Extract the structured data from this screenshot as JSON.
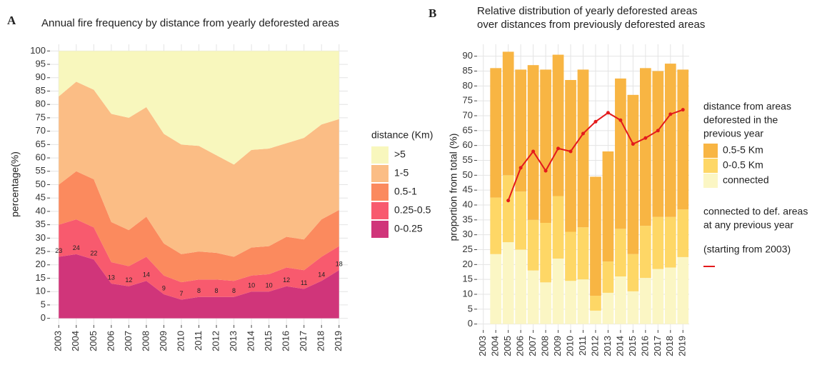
{
  "chart_data": [
    {
      "type": "area",
      "panel": "A",
      "title": "Annual fire frequency by distance from yearly deforested areas",
      "y_label": "percentage(%)",
      "legend_title": "distance (Km)",
      "data_labels": true,
      "grid": true,
      "categories": [
        "2003",
        "2004",
        "2005",
        "2006",
        "2007",
        "2008",
        "2009",
        "2010",
        "2011",
        "2012",
        "2013",
        "2014",
        "2015",
        "2016",
        "2017",
        "2018",
        "2019"
      ],
      "ylim": [
        -2.5,
        102.5
      ],
      "yticks": [
        0,
        5,
        10,
        15,
        20,
        25,
        30,
        35,
        40,
        45,
        50,
        55,
        60,
        65,
        70,
        75,
        80,
        85,
        90,
        95,
        100
      ],
      "series": [
        {
          "name": "0-0.25",
          "color": "#d0357a",
          "values": [
            23,
            24,
            22,
            13,
            12,
            14,
            9,
            7,
            8,
            8,
            8,
            10,
            10,
            12,
            11,
            14,
            18
          ]
        },
        {
          "name": "0.25-0.5",
          "color": "#f85a6e",
          "values": [
            12,
            13,
            12,
            8,
            7.5,
            9,
            7,
            6.5,
            6.5,
            6.5,
            6,
            6,
            6.5,
            7,
            7,
            9,
            9
          ]
        },
        {
          "name": "0.5-1",
          "color": "#fb8a5e",
          "values": [
            15,
            18,
            18,
            15,
            13.5,
            15,
            12,
            10.5,
            10.5,
            10,
            9,
            10.5,
            10.5,
            11.5,
            11.5,
            14,
            13.5
          ]
        },
        {
          "name": "1-5",
          "color": "#fbbd85",
          "values": [
            33,
            33.5,
            33.5,
            40.5,
            42,
            41,
            41,
            41,
            39.5,
            36.5,
            34.5,
            36.5,
            36.5,
            35,
            38,
            35.5,
            34
          ]
        },
        {
          "name": ">5",
          "color": "#f8f7bd",
          "values": [
            17,
            11.5,
            14.5,
            23.5,
            25,
            21,
            31,
            35,
            35.5,
            39,
            42.5,
            37,
            36.5,
            34.5,
            32.5,
            27.5,
            25.5
          ]
        }
      ]
    },
    {
      "type": "bar",
      "panel": "B",
      "title": [
        "Relative distribution of yearly deforested areas",
        "over distances from previously deforested areas"
      ],
      "y_label": "proportion from total (%)",
      "stacked": true,
      "grid": true,
      "legend_title": [
        "distance from areas",
        "deforested in the",
        "previous year"
      ],
      "categories": [
        "2003",
        "2004",
        "2005",
        "2006",
        "2007",
        "2008",
        "2009",
        "2010",
        "2011",
        "2012",
        "2013",
        "2014",
        "2015",
        "2016",
        "2017",
        "2018",
        "2019"
      ],
      "ylim": [
        -2,
        94
      ],
      "yticks": [
        0,
        5,
        10,
        15,
        20,
        25,
        30,
        35,
        40,
        45,
        50,
        55,
        60,
        65,
        70,
        75,
        80,
        85,
        90
      ],
      "series": [
        {
          "name": "connected",
          "color": "#fbf6c4",
          "values": [
            null,
            23.5,
            27.5,
            25,
            18,
            14,
            22,
            14.5,
            15,
            4.5,
            10.5,
            16,
            11,
            15.5,
            18.5,
            19,
            22.5
          ]
        },
        {
          "name": "0-0.5 Km",
          "color": "#fed766",
          "values": [
            null,
            19,
            22.5,
            19.5,
            17,
            20,
            21,
            16.5,
            17.5,
            5,
            10.5,
            16,
            12.5,
            17.5,
            17.5,
            17,
            16
          ]
        },
        {
          "name": "0.5-5 Km",
          "color": "#f8b543",
          "values": [
            null,
            43.5,
            41.5,
            41,
            52,
            51.5,
            47.5,
            51,
            53,
            40,
            37,
            50.5,
            53.5,
            53,
            49,
            51.5,
            47
          ]
        },
        {
          "name": [
            "connected to def. areas",
            "at any previous year"
          ],
          "type": "line",
          "color": "#e31a1c",
          "note": "(starting from 2003)",
          "values": [
            null,
            null,
            41.5,
            52.5,
            58,
            51.5,
            59,
            58,
            64,
            68,
            71,
            68.5,
            60.5,
            62.5,
            65,
            70.5,
            72
          ]
        }
      ]
    }
  ]
}
